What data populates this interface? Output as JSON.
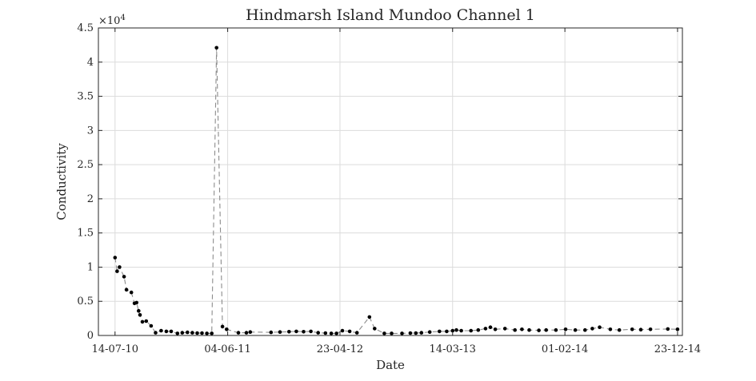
{
  "chart_data": {
    "type": "line",
    "title": "Hindmarsh Island Mundoo Channel 1",
    "xlabel": "Date",
    "ylabel": "Conductivity",
    "y_multiplier_label": "×10",
    "y_multiplier_exponent": "4",
    "ylim": [
      0,
      45000
    ],
    "xlim": [
      "2010-05-27",
      "2015-01-06"
    ],
    "yticks": [
      0,
      5000,
      10000,
      15000,
      20000,
      25000,
      30000,
      35000,
      40000,
      45000
    ],
    "ytick_labels": [
      "0",
      "0.5",
      "1",
      "1.5",
      "2",
      "2.5",
      "3",
      "3.5",
      "4",
      "4.5"
    ],
    "xticks": [
      "2010-07-14",
      "2011-06-04",
      "2012-04-23",
      "2013-03-14",
      "2014-02-01",
      "2014-12-23"
    ],
    "xtick_labels": [
      "14-07-10",
      "04-06-11",
      "23-04-12",
      "14-03-13",
      "01-02-14",
      "23-12-14"
    ],
    "grid": true,
    "series": [
      {
        "color": "#000000",
        "line_style": "dashed",
        "x": [
          "2010-07-14",
          "2010-07-20",
          "2010-07-27",
          "2010-08-09",
          "2010-08-16",
          "2010-08-30",
          "2010-09-08",
          "2010-09-14",
          "2010-09-20",
          "2010-09-24",
          "2010-10-01",
          "2010-10-12",
          "2010-10-26",
          "2010-11-08",
          "2010-11-24",
          "2010-12-09",
          "2010-12-23",
          "2011-01-10",
          "2011-01-24",
          "2011-02-08",
          "2011-02-22",
          "2011-03-08",
          "2011-03-22",
          "2011-04-05",
          "2011-04-19",
          "2011-05-03",
          "2011-05-20",
          "2011-06-01",
          "2011-07-05",
          "2011-07-28",
          "2011-08-08",
          "2011-10-07",
          "2011-11-02",
          "2011-11-28",
          "2011-12-19",
          "2012-01-09",
          "2012-01-30",
          "2012-02-20",
          "2012-03-12",
          "2012-03-29",
          "2012-04-13",
          "2012-04-30",
          "2012-05-21",
          "2012-06-11",
          "2012-07-17",
          "2012-08-01",
          "2012-08-29",
          "2012-09-19",
          "2012-10-19",
          "2012-11-12",
          "2012-11-28",
          "2012-12-14",
          "2013-01-07",
          "2013-02-04",
          "2013-02-25",
          "2013-03-14",
          "2013-03-25",
          "2013-04-08",
          "2013-05-06",
          "2013-05-27",
          "2013-06-17",
          "2013-07-01",
          "2013-07-15",
          "2013-08-12",
          "2013-09-10",
          "2013-09-30",
          "2013-10-21",
          "2013-11-18",
          "2013-12-09",
          "2014-01-06",
          "2014-02-03",
          "2014-03-03",
          "2014-03-31",
          "2014-04-21",
          "2014-05-12",
          "2014-06-12",
          "2014-07-08",
          "2014-08-14",
          "2014-09-08",
          "2014-10-06",
          "2014-11-25",
          "2014-12-23"
        ],
        "values": [
          11400,
          9400,
          10000,
          8600,
          6700,
          6300,
          4700,
          4800,
          3600,
          3000,
          2000,
          2100,
          1400,
          400,
          700,
          600,
          600,
          300,
          400,
          450,
          400,
          350,
          350,
          300,
          300,
          42100,
          1300,
          900,
          400,
          400,
          500,
          450,
          500,
          550,
          600,
          550,
          600,
          400,
          350,
          300,
          300,
          700,
          600,
          400,
          2700,
          1000,
          300,
          300,
          300,
          350,
          350,
          400,
          500,
          600,
          600,
          700,
          800,
          700,
          700,
          800,
          1000,
          1200,
          900,
          1000,
          800,
          900,
          800,
          750,
          800,
          800,
          900,
          800,
          800,
          1000,
          1200,
          900,
          800,
          900,
          850,
          900,
          950,
          900
        ]
      }
    ]
  }
}
